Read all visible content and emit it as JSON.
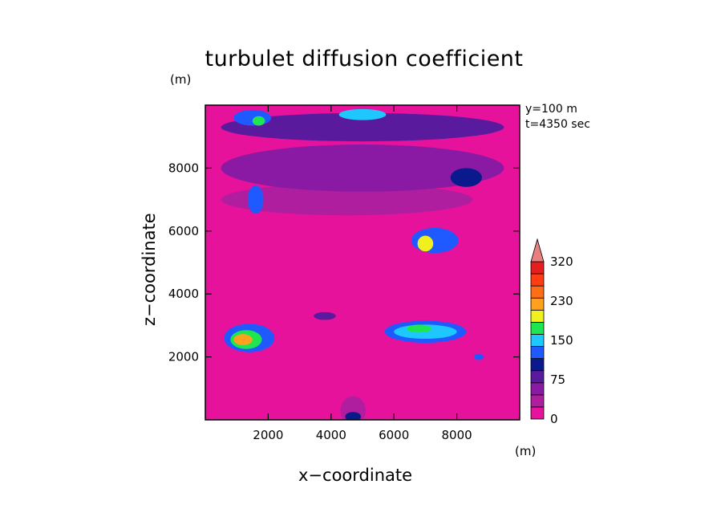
{
  "chart_data": {
    "type": "heatmap",
    "title": "turbulet diffusion coefficient",
    "xlabel": "x−coordinate",
    "ylabel": "z−coordinate",
    "x_unit": "(m)",
    "y_unit": "(m)",
    "xlim": [
      0,
      10000
    ],
    "ylim": [
      0,
      10000
    ],
    "x_ticks": [
      2000,
      4000,
      6000,
      8000
    ],
    "y_ticks": [
      2000,
      4000,
      6000,
      8000
    ],
    "annotations": [
      "y=100 m",
      "t=4350 sec"
    ],
    "colorbar": {
      "tick_labels": [
        "0",
        "75",
        "150",
        "230",
        "320"
      ],
      "tick_values": [
        0,
        75,
        150,
        230,
        320
      ],
      "levels": [
        0,
        25,
        50,
        75,
        100,
        125,
        150,
        175,
        200,
        230,
        260,
        290,
        320
      ],
      "colors": [
        "#e6129b",
        "#b01ea0",
        "#8a1aa3",
        "#5a1a9e",
        "#0a1a8c",
        "#1e5aff",
        "#1ec8ff",
        "#1ee650",
        "#f0f01e",
        "#ffa01e",
        "#ff6e14",
        "#ff3c14",
        "#e61e1e"
      ],
      "extend_color": "#e88080"
    },
    "field": {
      "background_level": 0,
      "regions": [
        {
          "x": 5000,
          "z": 9300,
          "sx": 9000,
          "sz": 900,
          "level": 3
        },
        {
          "x": 5000,
          "z": 8000,
          "sx": 9000,
          "sz": 1500,
          "level": 2
        },
        {
          "x": 4500,
          "z": 7000,
          "sx": 8000,
          "sz": 1000,
          "level": 1
        },
        {
          "x": 1500,
          "z": 9600,
          "sx": 1200,
          "sz": 500,
          "level": 5
        },
        {
          "x": 1700,
          "z": 9500,
          "sx": 400,
          "sz": 300,
          "level": 7
        },
        {
          "x": 5000,
          "z": 9700,
          "sx": 1500,
          "sz": 350,
          "level": 6
        },
        {
          "x": 8300,
          "z": 7700,
          "sx": 1000,
          "sz": 600,
          "level": 4
        },
        {
          "x": 1600,
          "z": 7000,
          "sx": 500,
          "sz": 900,
          "level": 5
        },
        {
          "x": 7300,
          "z": 5700,
          "sx": 1500,
          "sz": 800,
          "level": 5
        },
        {
          "x": 7000,
          "z": 5600,
          "sx": 500,
          "sz": 500,
          "level": 8
        },
        {
          "x": 1400,
          "z": 2600,
          "sx": 1600,
          "sz": 900,
          "level": 5
        },
        {
          "x": 1300,
          "z": 2550,
          "sx": 1000,
          "sz": 600,
          "level": 7
        },
        {
          "x": 1200,
          "z": 2550,
          "sx": 600,
          "sz": 350,
          "level": 9
        },
        {
          "x": 7000,
          "z": 2800,
          "sx": 2600,
          "sz": 700,
          "level": 5
        },
        {
          "x": 7000,
          "z": 2800,
          "sx": 2000,
          "sz": 450,
          "level": 6
        },
        {
          "x": 6800,
          "z": 2900,
          "sx": 800,
          "sz": 250,
          "level": 7
        },
        {
          "x": 3800,
          "z": 3300,
          "sx": 700,
          "sz": 250,
          "level": 3
        },
        {
          "x": 4700,
          "z": 300,
          "sx": 800,
          "sz": 900,
          "level": 1
        },
        {
          "x": 4700,
          "z": 100,
          "sx": 500,
          "sz": 300,
          "level": 4
        },
        {
          "x": 8700,
          "z": 2000,
          "sx": 300,
          "sz": 200,
          "level": 5
        }
      ]
    }
  }
}
